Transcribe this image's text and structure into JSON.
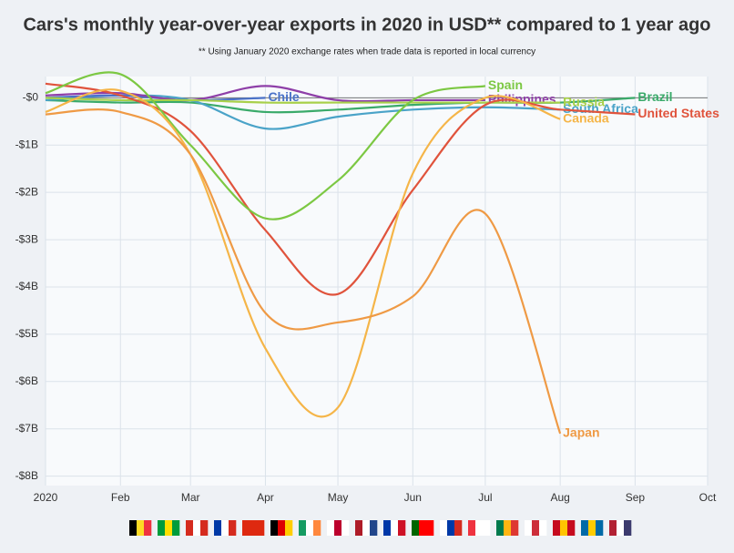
{
  "chart_data": {
    "type": "line",
    "title": "Cars's monthly year-over-year exports in 2020 in USD** compared to 1 year ago",
    "subtitle": "** Using January 2020 exchange rates when trade data is reported in local currency",
    "x": [
      "2020-01",
      "2020-02",
      "2020-03",
      "2020-04",
      "2020-05",
      "2020-06",
      "2020-07",
      "2020-08",
      "2020-09"
    ],
    "xlim": [
      "2020-01",
      "2020-10"
    ],
    "xticks": [
      {
        "value": "2020-01",
        "label": "2020"
      },
      {
        "value": "2020-02",
        "label": "Feb"
      },
      {
        "value": "2020-03",
        "label": "Mar"
      },
      {
        "value": "2020-04",
        "label": "Apr"
      },
      {
        "value": "2020-05",
        "label": "May"
      },
      {
        "value": "2020-06",
        "label": "Jun"
      },
      {
        "value": "2020-07",
        "label": "Jul"
      },
      {
        "value": "2020-08",
        "label": "Aug"
      },
      {
        "value": "2020-09",
        "label": "Sep"
      },
      {
        "value": "2020-10",
        "label": "Oct"
      }
    ],
    "ylim": [
      -8.2,
      0.45
    ],
    "yticks": [
      {
        "value": 0,
        "label": "-$0"
      },
      {
        "value": -1,
        "label": "-$1B"
      },
      {
        "value": -2,
        "label": "-$2B"
      },
      {
        "value": -3,
        "label": "-$3B"
      },
      {
        "value": -4,
        "label": "-$4B"
      },
      {
        "value": -5,
        "label": "-$5B"
      },
      {
        "value": -6,
        "label": "-$6B"
      },
      {
        "value": -7,
        "label": "-$7B"
      },
      {
        "value": -8,
        "label": "-$8B"
      }
    ],
    "grid": true,
    "series": [
      {
        "name": "Brazil",
        "color": "#3aaa6a",
        "values": [
          -0.05,
          -0.1,
          -0.1,
          -0.3,
          -0.25,
          -0.15,
          -0.1,
          -0.1,
          0.0
        ]
      },
      {
        "name": "South Africa",
        "color": "#4aa3c8",
        "values": [
          -0.05,
          0.05,
          -0.05,
          -0.65,
          -0.4,
          -0.25,
          -0.2,
          -0.25,
          null
        ]
      },
      {
        "name": "Chile",
        "color": "#4a72c8",
        "values": [
          0.0,
          0.05,
          -0.05,
          0.0,
          null,
          null,
          null,
          null,
          null
        ]
      },
      {
        "name": "Philippines",
        "color": "#8e3fa8",
        "values": [
          0.05,
          0.1,
          -0.05,
          0.25,
          -0.05,
          -0.05,
          -0.05,
          null,
          null
        ]
      },
      {
        "name": "Russia",
        "color": "#a8d04a",
        "values": [
          0.0,
          -0.05,
          -0.05,
          -0.1,
          -0.1,
          -0.1,
          -0.1,
          -0.1,
          null
        ]
      },
      {
        "name": "United States",
        "color": "#e0533c",
        "values": [
          0.3,
          0.05,
          -0.7,
          -2.8,
          -4.15,
          -1.95,
          -0.15,
          -0.25,
          -0.35
        ]
      },
      {
        "name": "Spain",
        "color": "#7cc843",
        "values": [
          0.1,
          0.5,
          -1.0,
          -2.55,
          -1.75,
          -0.05,
          0.25,
          null,
          null
        ]
      },
      {
        "name": "Canada",
        "color": "#f5b548",
        "values": [
          -0.3,
          0.15,
          -1.2,
          -5.3,
          -6.55,
          -1.6,
          0.0,
          -0.45,
          null
        ]
      },
      {
        "name": "Japan",
        "color": "#ef9a45",
        "values": [
          -0.35,
          -0.3,
          -1.2,
          -4.55,
          -4.75,
          -4.2,
          -2.45,
          -7.1,
          null
        ]
      }
    ]
  }
}
